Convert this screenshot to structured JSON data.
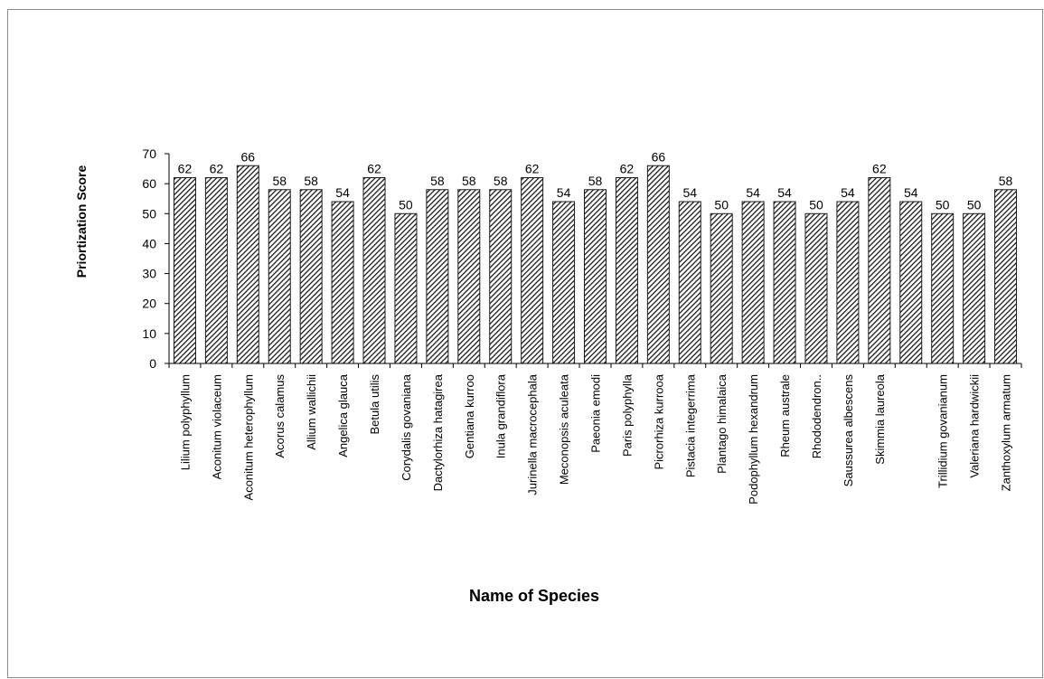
{
  "chart_data": {
    "type": "bar",
    "xlabel": "Name of Species",
    "ylabel": "Priortization Score",
    "ylim": [
      0,
      70
    ],
    "yticks": [
      0,
      10,
      20,
      30,
      40,
      50,
      60,
      70
    ],
    "bar_pattern": "diagonal-hatch",
    "colors": {
      "bar_fill": "#ffffff",
      "hatch": "#1a1a1a",
      "axis": "#000000",
      "frame": "#8c8c8c"
    },
    "categories": [
      "Lilium polyphyllum",
      "Aconitum violaceum",
      "Aconitum heterophyllum",
      "Acorus calamus",
      "Allium wallichii",
      "Angelica glauca",
      "Betula utilis",
      "Corydalis govaniana",
      "Dactylorhiza hatagirea",
      "Gentiana kurroo",
      "Inula grandiflora",
      "Jurinella macrocephala",
      "Meconopsis aculeata",
      "Paeonia emodi",
      "Paris polyphylla",
      "Picrorhiza kurrooa",
      "Pistacia integerrima",
      "Plantago himalaica",
      "Podophyllum hexandrum",
      "Rheum australe",
      "Rhododendron..",
      "Saussurea albescens",
      "Skimmia laureola",
      "",
      "Trillidium govanianum",
      "Valeriana hardwickii",
      "Zanthoxylum armatum"
    ],
    "values": [
      62,
      62,
      66,
      58,
      58,
      54,
      62,
      50,
      58,
      58,
      58,
      62,
      54,
      58,
      62,
      66,
      54,
      50,
      54,
      54,
      50,
      54,
      62,
      54,
      50,
      50,
      58
    ]
  }
}
